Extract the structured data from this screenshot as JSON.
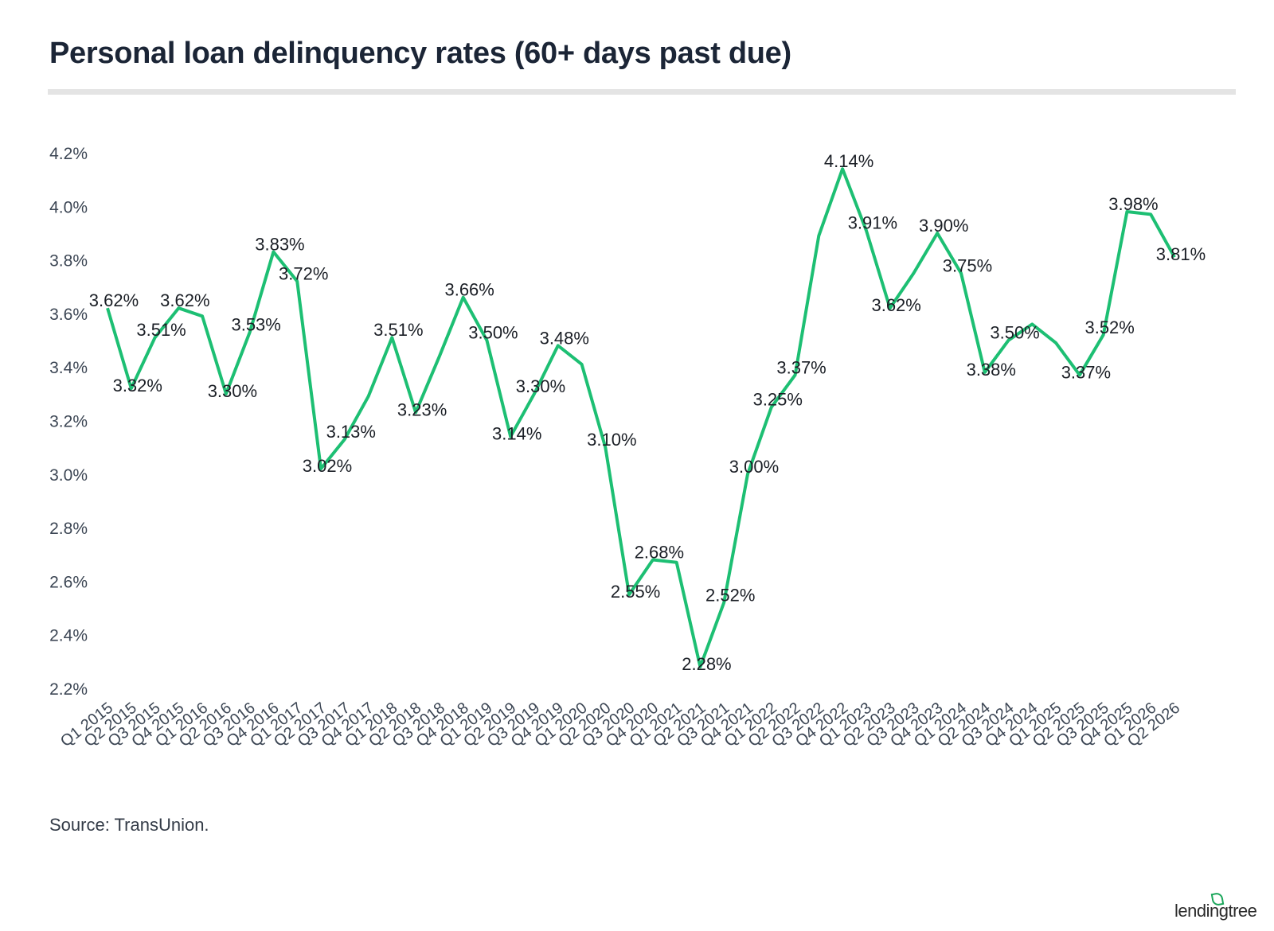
{
  "chart_data": {
    "type": "line",
    "title": "Personal loan delinquency rates (60+ days past due)",
    "categories": [
      "Q1 2015",
      "Q2 2015",
      "Q3 2015",
      "Q4 2015",
      "Q1 2016",
      "Q2 2016",
      "Q3 2016",
      "Q4 2016",
      "Q1 2017",
      "Q2 2017",
      "Q3 2017",
      "Q4 2017",
      "Q1 2018",
      "Q2 2018",
      "Q3 2018",
      "Q4 2018",
      "Q1 2019",
      "Q2 2019",
      "Q3 2019",
      "Q4 2019",
      "Q1 2020",
      "Q2 2020",
      "Q3 2020",
      "Q4 2020",
      "Q1 2021",
      "Q2 2021",
      "Q3 2021",
      "Q4 2021",
      "Q1 2022",
      "Q2 2022",
      "Q3 2022",
      "Q4 2022",
      "Q1 2023",
      "Q2 2023",
      "Q3 2023",
      "Q4 2023",
      "Q1 2024",
      "Q2 2024",
      "Q3 2024",
      "Q4 2024",
      "Q1 2025",
      "Q2 2025",
      "Q3 2025",
      "Q4 2025",
      "Q1 2026",
      "Q2 2026"
    ],
    "values": [
      3.62,
      3.32,
      3.51,
      3.62,
      3.59,
      3.3,
      3.53,
      3.83,
      3.72,
      3.02,
      3.13,
      3.29,
      3.51,
      3.23,
      3.44,
      3.66,
      3.5,
      3.14,
      3.3,
      3.48,
      3.41,
      3.1,
      2.55,
      2.68,
      2.67,
      2.28,
      2.52,
      3.0,
      3.25,
      3.37,
      3.89,
      4.14,
      3.91,
      3.62,
      3.75,
      3.9,
      3.75,
      3.38,
      3.5,
      3.56,
      3.49,
      3.37,
      3.52,
      3.98,
      3.97,
      3.81
    ],
    "data_labels": [
      "3.62%",
      "3.32%",
      "3.51%",
      "3.62%",
      "",
      "3.30%",
      "3.53%",
      "3.83%",
      "3.72%",
      "3.02%",
      "3.13%",
      "",
      "3.51%",
      "3.23%",
      "",
      "3.66%",
      "3.50%",
      "3.14%",
      "3.30%",
      "3.48%",
      "",
      "3.10%",
      "2.55%",
      "2.68%",
      "",
      "2.28%",
      "2.52%",
      "3.00%",
      "3.25%",
      "3.37%",
      "",
      "4.14%",
      "3.91%",
      "3.62%",
      "",
      "3.90%",
      "3.75%",
      "3.38%",
      "3.50%",
      "",
      "",
      "3.37%",
      "3.52%",
      "3.98%",
      "",
      "3.81%"
    ],
    "y_ticks": [
      "2.2%",
      "2.4%",
      "2.6%",
      "2.8%",
      "3.0%",
      "3.2%",
      "3.4%",
      "3.6%",
      "3.8%",
      "4.0%",
      "4.2%"
    ],
    "ylim": [
      2.2,
      4.2
    ],
    "grid": false,
    "line_color": "#1dbf73",
    "source": "Source: TransUnion.",
    "brand": "lendingtree"
  }
}
